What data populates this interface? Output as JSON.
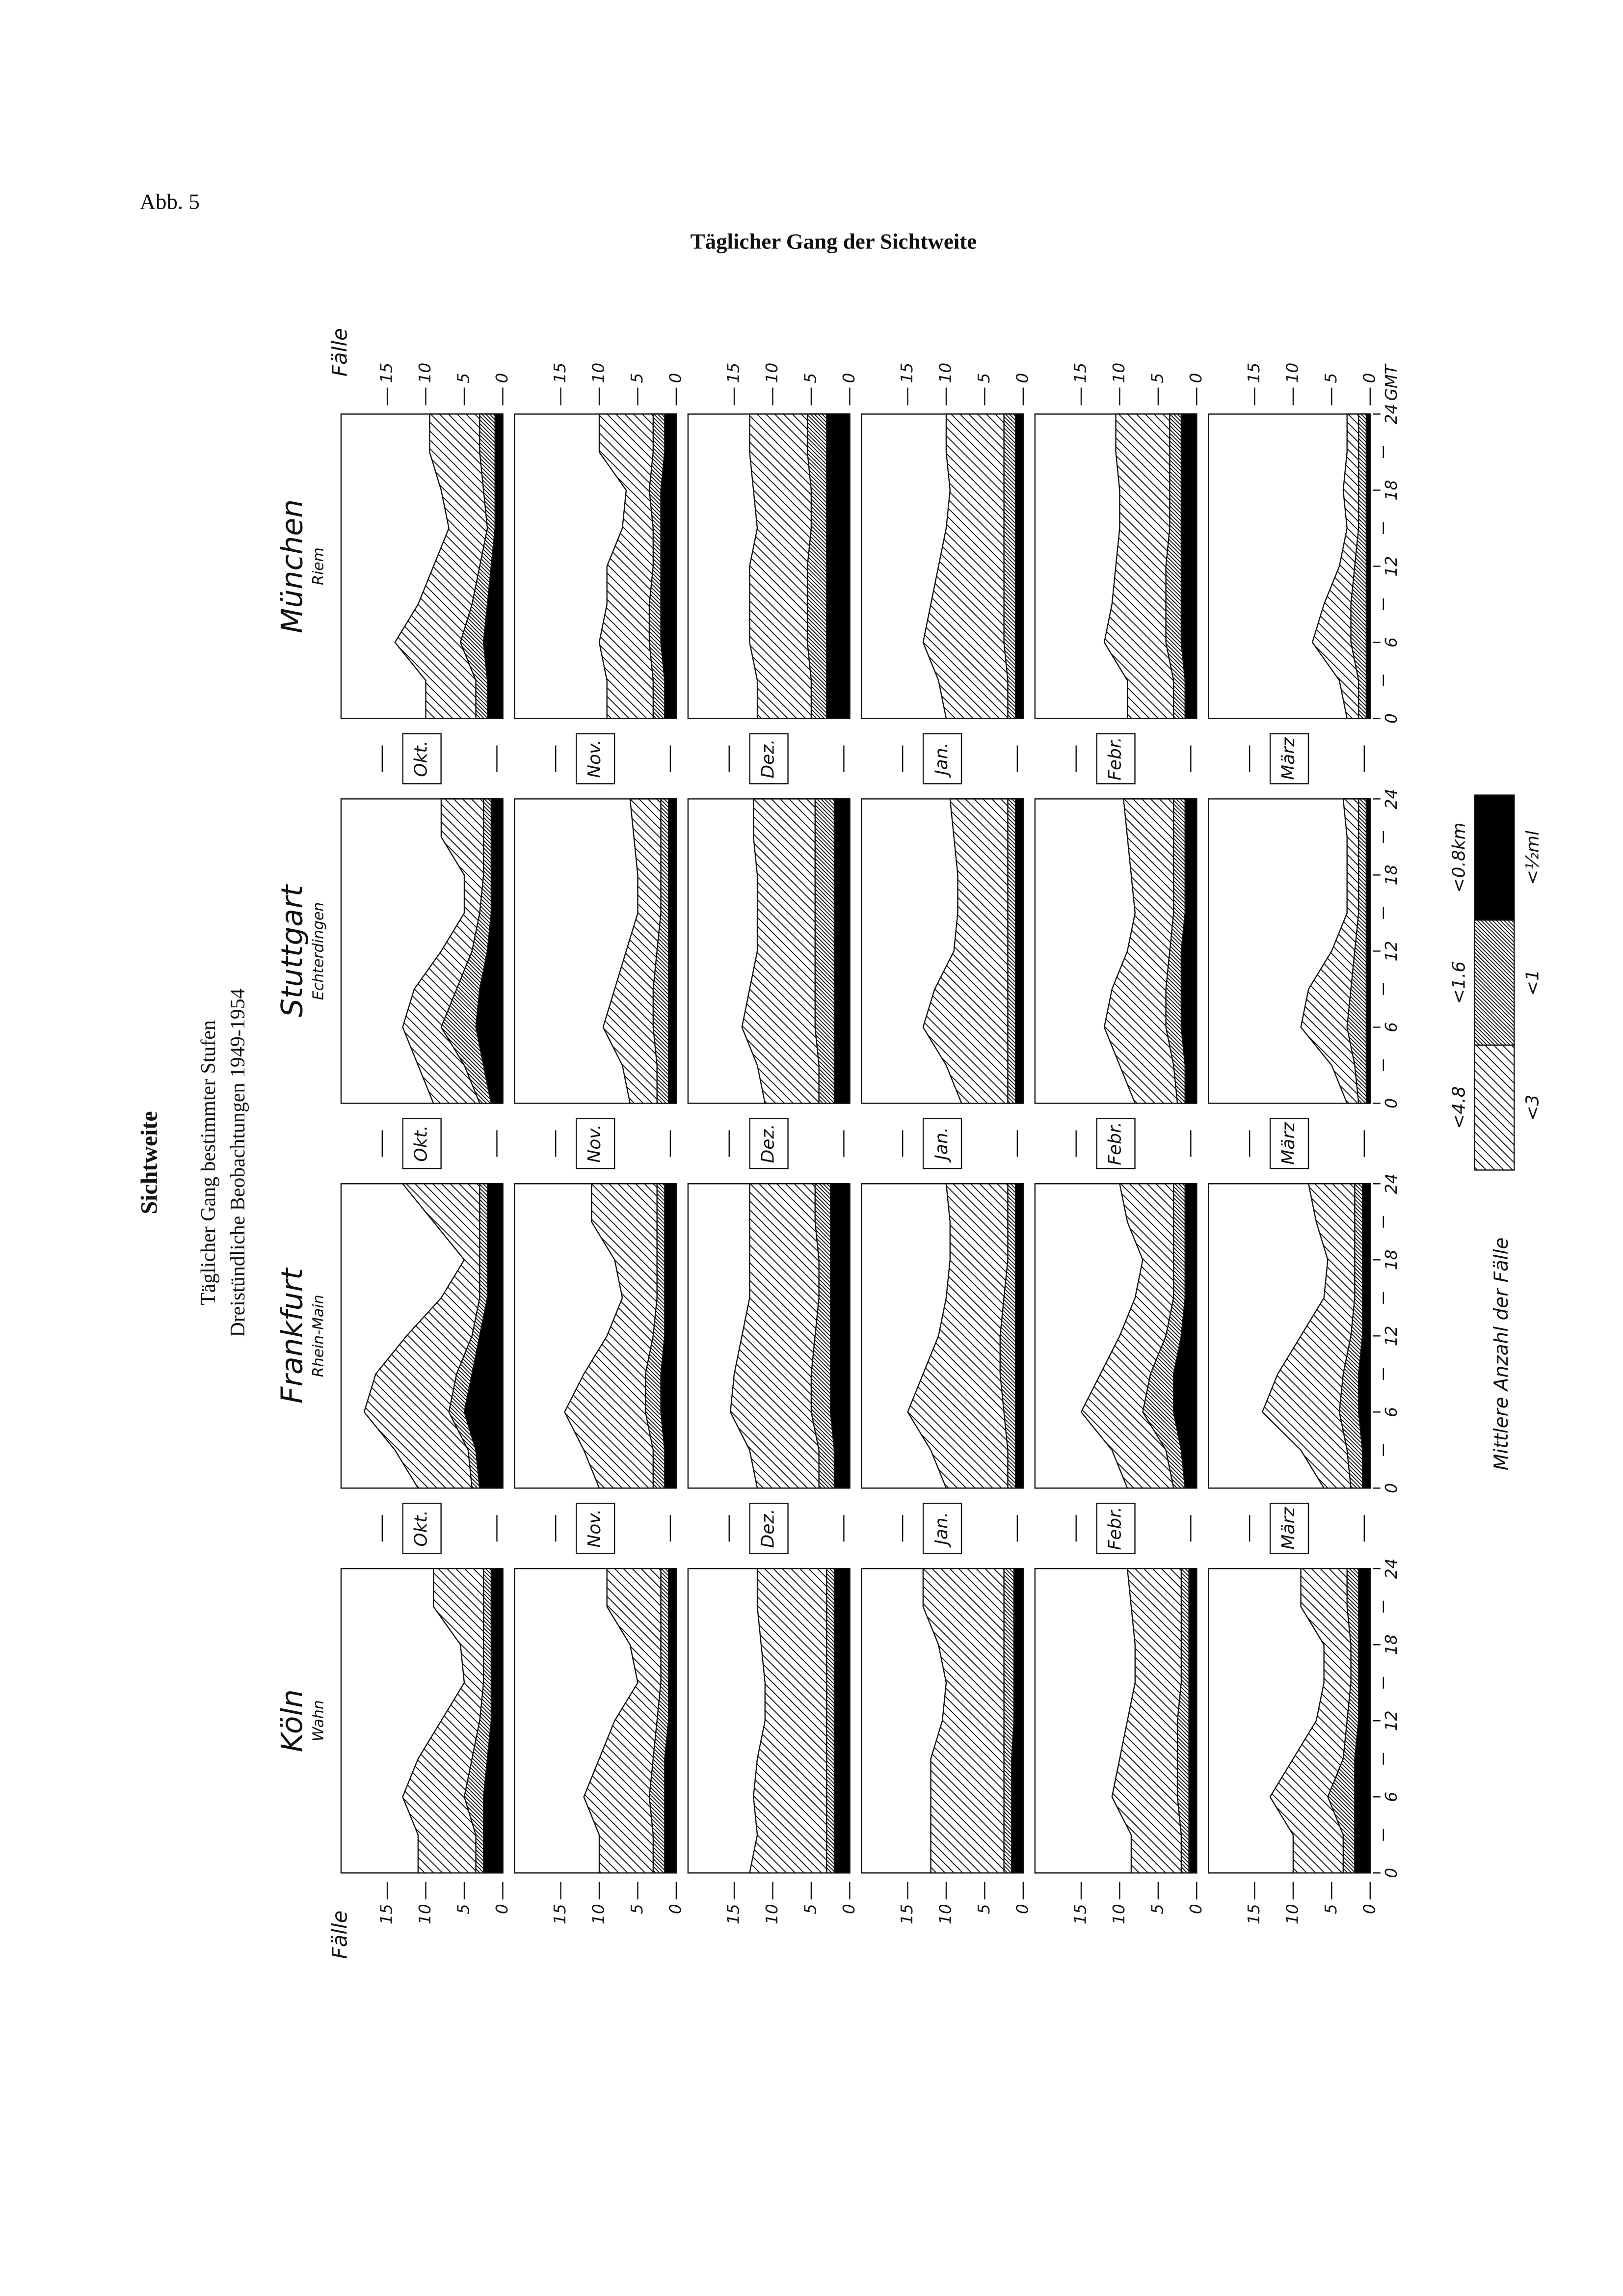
{
  "header": {
    "figure_label": "Abb. 5",
    "title": "Täglicher Gang der Sichtweite"
  },
  "side_title": {
    "title": "Sichtweite",
    "subtitle": "Täglicher Gang bestimmter Stufen",
    "note": "Dreistündliche Beobachtungen 1949-1954"
  },
  "chart_data": {
    "type": "area",
    "x": [
      0,
      3,
      6,
      9,
      12,
      15,
      18,
      21,
      24
    ],
    "xlim": [
      0,
      24
    ],
    "xticks": [
      0,
      6,
      12,
      18,
      24
    ],
    "xminorticks": [
      3,
      9,
      15,
      21
    ],
    "xunit": "GMT",
    "ylim": [
      0,
      21
    ],
    "yticks": [
      0,
      5,
      10,
      15
    ],
    "ylabel": "Fälle",
    "legend_title": "Mittlere Anzahl der Fälle",
    "months": [
      "Okt.",
      "Nov.",
      "Dez.",
      "Jan.",
      "Febr.",
      "März"
    ],
    "series": [
      {
        "name": "<4.8",
        "alt_name": "<3",
        "color": "#000000",
        "hatch": "sparse"
      },
      {
        "name": "<1.6",
        "alt_name": "<1",
        "color": "#000000",
        "hatch": "dense"
      },
      {
        "name": "<0.8km",
        "alt_name": "<½ml",
        "color": "#000000",
        "hatch": "solid"
      }
    ],
    "stations": [
      {
        "name": "Köln",
        "subname": "Wahn",
        "values": [
          [
            [
              11,
              11,
              13,
              11,
              8,
              5,
              5.5,
              9,
              9
            ],
            [
              3.5,
              3.5,
              5,
              4,
              3,
              2.5,
              2.5,
              2.5,
              2.5
            ],
            [
              2.5,
              2.5,
              2.5,
              2,
              1.5,
              1.5,
              1.5,
              1.5,
              1.5
            ]
          ],
          [
            [
              10,
              10,
              12,
              10,
              8,
              5,
              6,
              9,
              9
            ],
            [
              3,
              3,
              3.5,
              3,
              2.5,
              2,
              2,
              2,
              2
            ],
            [
              1.5,
              1.5,
              1.5,
              1.5,
              1,
              1,
              1,
              1,
              1
            ]
          ],
          [
            [
              13,
              12,
              12.5,
              12,
              11,
              11,
              11.5,
              12,
              12
            ],
            [
              3,
              3,
              3,
              3,
              3,
              3,
              3,
              3,
              3
            ],
            [
              2,
              2,
              2,
              2,
              2,
              2,
              2,
              2,
              2
            ]
          ],
          [
            [
              12,
              12,
              12,
              12,
              10.5,
              10,
              11,
              13,
              13
            ],
            [
              2.5,
              2.5,
              2.5,
              2.5,
              2.5,
              2.5,
              2.5,
              2.5,
              2.5
            ],
            [
              1.5,
              1.5,
              1.5,
              1.5,
              1.2,
              1.2,
              1.2,
              1.2,
              1.2
            ]
          ],
          [
            [
              8.5,
              8.5,
              11,
              10,
              9,
              8,
              8,
              8.5,
              9
            ],
            [
              2,
              2,
              2.5,
              2.5,
              2.5,
              2,
              2,
              2,
              2
            ],
            [
              1,
              1,
              1,
              1,
              1,
              1,
              1,
              1,
              1
            ]
          ],
          [
            [
              10,
              10,
              13,
              10,
              7,
              6,
              6,
              9,
              9
            ],
            [
              3.5,
              3.5,
              5.5,
              3.5,
              3,
              2.5,
              2.5,
              3,
              3
            ],
            [
              2,
              2,
              2,
              2,
              1.5,
              1.5,
              1.5,
              1.5,
              1.5
            ]
          ]
        ]
      },
      {
        "name": "Frankfurt",
        "subname": "Rhein-Main",
        "values": [
          [
            [
              11,
              14,
              18,
              16.5,
              12.5,
              8,
              5,
              9,
              13
            ],
            [
              4,
              4.5,
              7,
              6,
              4,
              3,
              3,
              3,
              3
            ],
            [
              3,
              3.5,
              5,
              4,
              3,
              2,
              2,
              2,
              2
            ]
          ],
          [
            [
              10,
              12,
              14.5,
              12,
              9,
              7,
              8,
              11,
              11
            ],
            [
              3,
              3,
              4,
              4,
              3,
              2.5,
              2.5,
              2.5,
              2.5
            ],
            [
              1.5,
              1.5,
              2,
              2,
              1.5,
              1.5,
              1.5,
              1.5,
              1.5
            ]
          ],
          [
            [
              12,
              13,
              15.5,
              15,
              14,
              13,
              13,
              13,
              13
            ],
            [
              4,
              4,
              5,
              5,
              4.5,
              4,
              4,
              4.5,
              4.5
            ],
            [
              2,
              2,
              2.5,
              2.5,
              2.5,
              2.5,
              2.5,
              2.5,
              2.5
            ]
          ],
          [
            [
              10,
              12,
              15,
              13,
              11,
              10,
              9.5,
              9.5,
              10
            ],
            [
              2,
              2,
              2.5,
              3,
              3,
              2.5,
              2,
              2,
              2
            ],
            [
              1,
              1,
              1,
              1,
              1,
              1,
              1,
              1,
              1
            ]
          ],
          [
            [
              9,
              11,
              15,
              12.5,
              10,
              8,
              7,
              9,
              10
            ],
            [
              3,
              4,
              7,
              6,
              4,
              3,
              3,
              3,
              3
            ],
            [
              1.5,
              2,
              3,
              3,
              2,
              1.5,
              1.5,
              1.5,
              1.5
            ]
          ],
          [
            [
              6,
              9,
              14,
              12,
              9,
              6,
              5.5,
              7,
              8
            ],
            [
              2.5,
              3,
              4,
              3.5,
              2.5,
              2,
              2,
              2,
              2
            ],
            [
              1,
              1,
              1.5,
              1.5,
              1,
              1,
              1,
              1,
              1
            ]
          ]
        ]
      },
      {
        "name": "Stuttgart",
        "subname": "Echterdingen",
        "values": [
          [
            [
              9,
              11,
              13,
              11.5,
              8,
              5,
              5,
              8,
              8
            ],
            [
              3,
              5,
              8,
              6,
              4,
              3,
              2.5,
              2.5,
              2.5
            ],
            [
              1.5,
              2.5,
              3.5,
              3,
              2,
              1.5,
              1.5,
              1.5,
              1.5
            ]
          ],
          [
            [
              6,
              7,
              9.5,
              8,
              6.5,
              5,
              5,
              5.5,
              6
            ],
            [
              2.5,
              2.5,
              3,
              3,
              2.5,
              2,
              2,
              2,
              2
            ],
            [
              1,
              1,
              1,
              1,
              1,
              1,
              1,
              1,
              1
            ]
          ],
          [
            [
              11,
              12,
              14,
              13,
              12,
              12,
              12,
              12.5,
              12.5
            ],
            [
              4,
              4,
              4.5,
              4.5,
              4.5,
              4.5,
              4.5,
              4.5,
              4.5
            ],
            [
              2,
              2,
              2,
              2,
              2,
              2,
              2,
              2,
              2
            ]
          ],
          [
            [
              8,
              10,
              13,
              11.5,
              9,
              8.5,
              8.5,
              9,
              9.5
            ],
            [
              2,
              2,
              2,
              2,
              2,
              2,
              2,
              2,
              2
            ],
            [
              1,
              1,
              1,
              1,
              1,
              1,
              1,
              1,
              1
            ]
          ],
          [
            [
              8,
              10,
              12,
              11,
              9,
              8,
              8.5,
              9,
              9.5
            ],
            [
              2.5,
              3,
              4,
              4,
              3.5,
              3,
              3,
              3,
              3
            ],
            [
              1.5,
              1.5,
              2,
              2,
              2,
              1.5,
              1.5,
              1.5,
              1.5
            ]
          ],
          [
            [
              3,
              5,
              9,
              8,
              5,
              3,
              3,
              3,
              3.5
            ],
            [
              1.5,
              2,
              3,
              2.5,
              2,
              1.5,
              1.5,
              1.5,
              1.5
            ],
            [
              0.5,
              0.5,
              0.5,
              0.5,
              0.5,
              0.5,
              0.5,
              0.5,
              0.5
            ]
          ]
        ]
      },
      {
        "name": "München",
        "subname": "Riem",
        "values": [
          [
            [
              10,
              10,
              14,
              11,
              9,
              7,
              8,
              9.5,
              9.5
            ],
            [
              3.5,
              3.5,
              5.5,
              4,
              3,
              2,
              2.5,
              3,
              3
            ],
            [
              2,
              2,
              2.5,
              2,
              1.5,
              1,
              1,
              1,
              1
            ]
          ],
          [
            [
              9,
              9,
              10,
              9,
              9,
              7,
              6.5,
              10,
              10
            ],
            [
              3,
              3,
              3.5,
              3.5,
              3,
              3,
              3.5,
              3,
              3
            ],
            [
              1.5,
              1.5,
              2,
              2,
              2,
              2,
              2,
              1.5,
              1.5
            ]
          ],
          [
            [
              12,
              12,
              13,
              13,
              13,
              12,
              12.5,
              13,
              13
            ],
            [
              5,
              5,
              5.5,
              5.5,
              5.5,
              5,
              5,
              5.5,
              5.5
            ],
            [
              3,
              3,
              3,
              3,
              3,
              3,
              3,
              3,
              3
            ]
          ],
          [
            [
              10,
              11,
              13,
              12,
              11,
              10,
              9.5,
              10,
              10
            ],
            [
              2,
              2,
              2.5,
              2.5,
              2.5,
              2.5,
              2.5,
              2.5,
              2.5
            ],
            [
              1,
              1,
              1,
              1,
              1,
              1,
              1,
              1,
              1
            ]
          ],
          [
            [
              9,
              9,
              12,
              11,
              10.5,
              10,
              10,
              10.5,
              10.5
            ],
            [
              3,
              3,
              4,
              4,
              4,
              3.5,
              3.5,
              3.5,
              3.5
            ],
            [
              1.5,
              1.5,
              2,
              2,
              2,
              2,
              2,
              2,
              2
            ]
          ],
          [
            [
              3,
              4,
              7.5,
              6,
              4,
              3,
              3.5,
              3,
              3
            ],
            [
              1.5,
              1.5,
              2.5,
              2.5,
              2,
              1.5,
              1.5,
              1.5,
              1.5
            ],
            [
              0.5,
              0.5,
              0.5,
              0.5,
              0.5,
              0.5,
              0.5,
              0.5,
              0.5
            ]
          ]
        ]
      }
    ]
  }
}
